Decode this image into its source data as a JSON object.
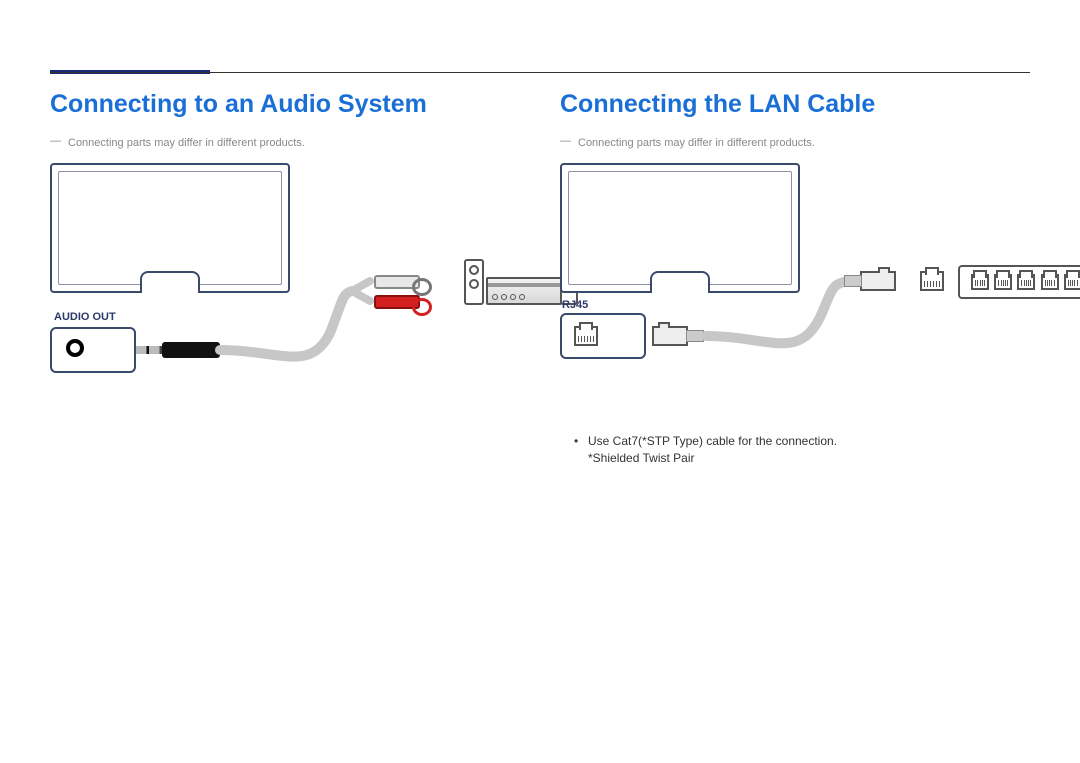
{
  "accent_color": "#1a2a7a",
  "heading_color": "#1a6fd6",
  "note_color": "#8a8a8a",
  "label_color": "#2a3a6b",
  "left": {
    "title": "Connecting to an Audio System",
    "note": "Connecting parts may differ in different products.",
    "port_label": "AUDIO OUT",
    "rca_white": "#e8e8e8",
    "rca_red": "#d1201f",
    "cable_color": "#c7c7c7",
    "plug_color": "#111111",
    "monitor_border": "#3a4a6b"
  },
  "right": {
    "title": "Connecting the LAN Cable",
    "note": "Connecting parts may differ in different products.",
    "port_label": "RJ45",
    "cable_color": "#c7c7c7",
    "monitor_border": "#3a4a6b",
    "switch_ports": 6,
    "bullet1": "Use Cat7(*STP Type) cable for the connection.",
    "bullet1_sub": "*Shielded Twist Pair"
  }
}
